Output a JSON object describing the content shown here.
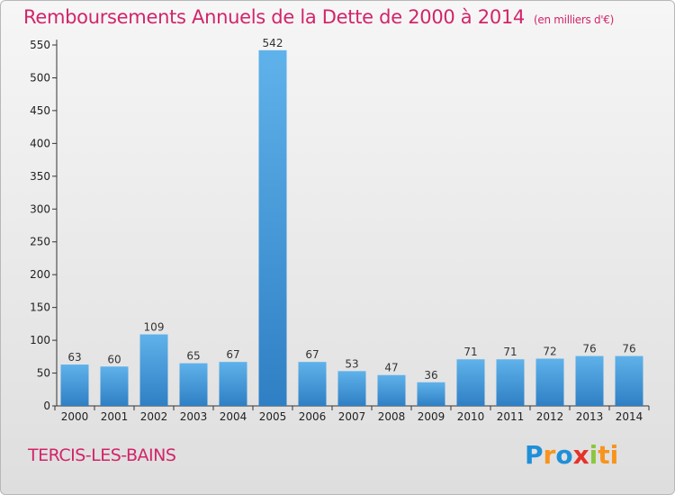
{
  "page": {
    "title": "Remboursements Annuels de la Dette de 2000 à 2014",
    "unit": "(en milliers d'€)",
    "commune": "TERCIS-LES-BAINS",
    "logo": [
      "P",
      "r",
      "o",
      "x",
      "i",
      "ti"
    ]
  },
  "chart_data": {
    "type": "bar",
    "title": "Remboursements Annuels de la Dette de 2000 à 2014",
    "subtitle": "(en milliers d'€)",
    "xlabel": "",
    "ylabel": "",
    "categories": [
      "2000",
      "2001",
      "2002",
      "2003",
      "2004",
      "2005",
      "2006",
      "2007",
      "2008",
      "2009",
      "2010",
      "2011",
      "2012",
      "2013",
      "2014"
    ],
    "values": [
      63,
      60,
      109,
      65,
      67,
      542,
      67,
      53,
      47,
      36,
      71,
      71,
      72,
      76,
      76
    ],
    "ylim": [
      0,
      550
    ],
    "yticks": [
      0,
      50,
      100,
      150,
      200,
      250,
      300,
      350,
      400,
      450,
      500,
      550
    ],
    "grid": false,
    "colors": {
      "bar_light": "#5fb2ea",
      "bar_dark": "#2f7fc4",
      "title": "#d2246a"
    }
  }
}
